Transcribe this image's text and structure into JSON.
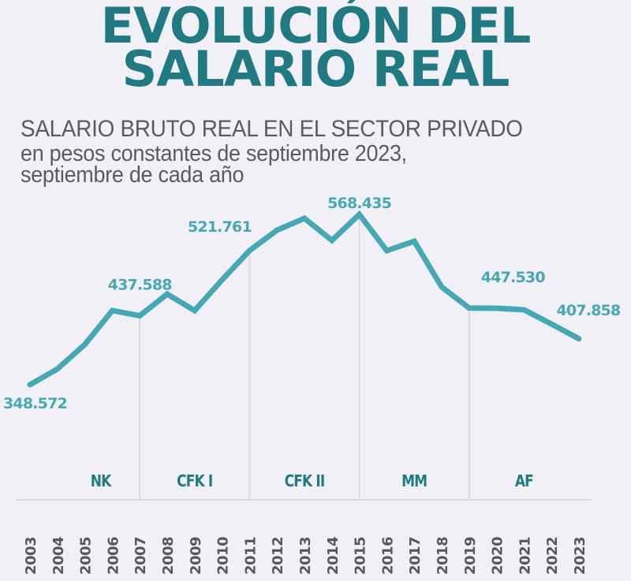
{
  "header": {
    "title_line1": "EVOLUCIÓN DEL",
    "title_line2": "SALARIO REAL",
    "subtitle_line1": "SALARIO BRUTO REAL EN EL SECTOR PRIVADO",
    "subtitle_line2": "en pesos constantes de septiembre 2023,",
    "subtitle_line3": "septiembre de cada año"
  },
  "colors": {
    "background": "#f1f0f7",
    "line": "#47a8b5",
    "title": "#217a81",
    "period_label": "#217a81",
    "year_label": "#58585c",
    "divider": "#d6d6d9"
  },
  "chart_data": {
    "type": "line",
    "title": "EVOLUCIÓN DEL SALARIO REAL",
    "subtitle": "SALARIO BRUTO REAL EN EL SECTOR PRIVADO en pesos constantes de septiembre 2023, septiembre de cada año",
    "xlabel": "",
    "ylabel": "",
    "grid": false,
    "x": [
      "2003",
      "2004",
      "2005",
      "2006",
      "2007",
      "2008",
      "2009",
      "2010",
      "2011",
      "2012",
      "2013",
      "2014",
      "2015",
      "2016",
      "2017",
      "2018",
      "2019",
      "2020",
      "2021",
      "2022",
      "2023"
    ],
    "series": [
      {
        "name": "Salario bruto real",
        "values": [
          348.572,
          368.9,
          400.5,
          444.3,
          437.588,
          465.6,
          444.3,
          484.0,
          521.761,
          548.1,
          563.4,
          534.9,
          568.435,
          521.6,
          533.8,
          474.8,
          447.53,
          447.3,
          445.3,
          426.9,
          407.858
        ]
      }
    ],
    "ylim": [
      348.572,
      568.435
    ],
    "data_labels": [
      {
        "year": "2003",
        "text": "348.572",
        "position": "below"
      },
      {
        "year": "2007",
        "text": "437.588",
        "position": "above"
      },
      {
        "year": "2011",
        "text": "521.761",
        "position": "above-left"
      },
      {
        "year": "2015",
        "text": "568.435",
        "position": "above"
      },
      {
        "year": "2019",
        "text": "447.530",
        "position": "above-right"
      },
      {
        "year": "2023",
        "text": "407.858",
        "position": "above"
      }
    ],
    "periods": [
      {
        "label": "NK",
        "start": "2003",
        "end": "2007"
      },
      {
        "label": "CFK I",
        "start": "2007",
        "end": "2011"
      },
      {
        "label": "CFK II",
        "start": "2011",
        "end": "2015"
      },
      {
        "label": "MM",
        "start": "2015",
        "end": "2019"
      },
      {
        "label": "AF",
        "start": "2019",
        "end": "2023"
      }
    ],
    "dividers": [
      "2007",
      "2011",
      "2015",
      "2019"
    ]
  }
}
